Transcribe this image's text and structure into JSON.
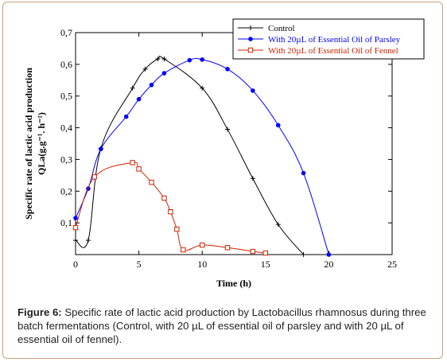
{
  "chart_data": {
    "type": "line",
    "xlabel": "Time (h)",
    "ylabel_line1": "Specific rate of lactic acid production",
    "ylabel_line2": "QLa(g.g⁻¹. h⁻¹)",
    "xlim": [
      0,
      25
    ],
    "ylim": [
      0,
      0.7
    ],
    "xticks": [
      0,
      5,
      10,
      15,
      20,
      25
    ],
    "xtick_labels": [
      "0",
      "5",
      "10",
      "15",
      "20",
      "25"
    ],
    "yticks": [
      0.1,
      0.2,
      0.3,
      0.4,
      0.5,
      0.6,
      0.7
    ],
    "ytick_labels": [
      "0,1",
      "0,2",
      "0,3",
      "0,4",
      "0,5",
      "0,6",
      "0,7"
    ],
    "grid": false,
    "legend_position": "top-right",
    "series": [
      {
        "name": "Control",
        "color": "#000000",
        "marker": "plus",
        "points": [
          [
            0,
            0.045
          ],
          [
            1,
            0.045
          ],
          [
            2,
            0.335
          ],
          [
            4.5,
            0.525
          ],
          [
            5.5,
            0.585
          ],
          [
            6.5,
            0.617
          ],
          [
            7,
            0.617
          ],
          [
            10,
            0.525
          ],
          [
            12,
            0.395
          ],
          [
            14,
            0.24
          ],
          [
            16,
            0.095
          ],
          [
            18,
            0.0
          ]
        ]
      },
      {
        "name": "With 20µL of Essential Oil of Parsley",
        "color": "#0000ff",
        "marker": "circle",
        "points": [
          [
            0,
            0.115
          ],
          [
            1,
            0.208
          ],
          [
            2,
            0.333
          ],
          [
            4,
            0.435
          ],
          [
            5,
            0.49
          ],
          [
            6,
            0.535
          ],
          [
            7,
            0.572
          ],
          [
            9,
            0.613
          ],
          [
            10,
            0.615
          ],
          [
            12,
            0.585
          ],
          [
            14,
            0.517
          ],
          [
            16,
            0.408
          ],
          [
            18,
            0.257
          ],
          [
            20,
            0.0
          ]
        ]
      },
      {
        "name": "With 20µL of Essential Oil of Fennel",
        "color": "#cc2200",
        "marker": "square",
        "points": [
          [
            0,
            0.085
          ],
          [
            1.5,
            0.245
          ],
          [
            4.5,
            0.29
          ],
          [
            5,
            0.27
          ],
          [
            6,
            0.228
          ],
          [
            7,
            0.178
          ],
          [
            7.5,
            0.135
          ],
          [
            8,
            0.08
          ],
          [
            8.5,
            0.015
          ],
          [
            10,
            0.03
          ],
          [
            12,
            0.022
          ],
          [
            14,
            0.01
          ],
          [
            15,
            0.005
          ]
        ]
      }
    ]
  },
  "caption": {
    "label": "Figure 6:",
    "text": " Specific rate of lactic acid production by Lactobacillus rhamnosus during three batch fermentations (Control, with 20 µL of essential oil of parsley and with 20 µL of essential oil of fennel)."
  }
}
